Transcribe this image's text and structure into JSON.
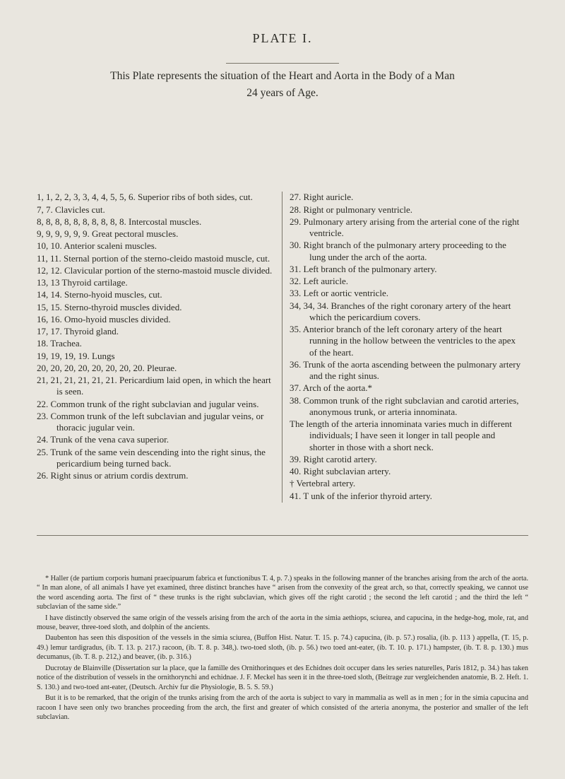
{
  "plateLabel": "PLATE I.",
  "headline": "This Plate represents the situation of the Heart and Aorta in the Body of a Man",
  "subhead": "24 years of Age.",
  "leftEntries": [
    "1, 1, 2, 2, 3, 3, 4, 4, 5, 5, 6. Superior ribs of both sides, cut.",
    "7, 7. Clavicles cut.",
    "8, 8, 8, 8, 8, 8, 8, 8, 8, 8. Intercostal muscles.",
    "9, 9, 9, 9, 9, 9. Great pectoral muscles.",
    "10, 10. Anterior scaleni muscles.",
    "11, 11. Sternal portion of the sterno-cleido mastoid muscle, cut.",
    "12, 12. Clavicular portion of the sterno-mastoid muscle divided.",
    "13, 13  Thyroid cartilage.",
    "14, 14. Sterno-hyoid muscles, cut.",
    "15, 15. Sterno-thyroid muscles divided.",
    "16, 16. Omo-hyoid muscles divided.",
    "17, 17. Thyroid gland.",
    "18. Trachea.",
    "19, 19, 19, 19. Lungs",
    "20, 20, 20, 20, 20, 20, 20, 20. Pleurae.",
    "21, 21, 21, 21, 21, 21. Pericardium laid open, in which the heart is seen.",
    "22. Common trunk of the right subclavian and jugular veins.",
    "23. Common trunk of the left subclavian and jugular veins, or thoracic jugular vein.",
    "24. Trunk of the vena cava superior.",
    "25. Trunk of the same vein descending into the right sinus, the pericardium being turned back.",
    "26. Right sinus or atrium cordis dextrum."
  ],
  "rightEntries": [
    "27. Right auricle.",
    "28. Right or pulmonary ventricle.",
    "29. Pulmonary artery arising from the arterial cone of the right ventricle.",
    "30. Right branch of the pulmonary artery proceeding to the lung under the arch of the aorta.",
    "31. Left branch of the pulmonary artery.",
    "32. Left auricle.",
    "33. Left or aortic ventricle.",
    "34, 34, 34. Branches of the right coronary artery of the heart which the pericardium covers.",
    "35. Anterior branch of the left coronary artery of the heart running in the hollow between the ventricles to the apex of the heart.",
    "36. Trunk of the aorta ascending between the pulmonary artery and the right sinus.",
    "37. Arch of the aorta.*",
    "38. Common trunk of the right subclavian and carotid arteries, anonymous trunk, or arteria innominata.",
    "     The length of the arteria innominata varies much in different individuals; I have seen it longer in tall people and shorter in those with a short neck.",
    "39. Right carotid artery.",
    "40. Right subclavian artery.",
    "†  Vertebral artery.",
    "41. T unk of the inferior thyroid artery."
  ],
  "footnoteParas": [
    "* Haller (de partium corporis humani praecipuarum fabrica et functionibus T. 4, p. 7.) speaks in the following manner of the branches arising from the arch of the aorta. “ In man alone, of all animals I have yet examined, three distinct branches have “ arisen from the convexity of the great arch, so that, correctly speaking, we cannot use the word ascending aorta. The first of “ these trunks is the right subclavian, which gives off the right carotid ; the second the left carotid ; and the third the left “ subclavian of the same side.”",
    "I have distinctly observed the same origin of the vessels arising from the arch of the aorta in the simia aethiops, sciurea, and capucina, in the hedge-hog, mole, rat, and mouse, beaver, three-toed sloth, and dolphin of the ancients.",
    "Daubenton has seen this disposition of the vessels in the simia sciurea, (Buffon Hist. Natur. T. 15. p. 74.) capucina, (ib. p. 57.) rosalia, (ib. p. 113 ) appella, (T. 15, p. 49.) lemur tardigradus, (ib. T. 13. p. 217.) racoon, (ib. T. 8. p. 348,). two-toed sloth, (ib. p. 56.) two toed ant-eater, (ib. T. 10. p. 171.) hampster, (ib. T. 8. p. 130.) mus decumanus, (ib. T. 8. p. 212,) and beaver, (ib. p. 316.)",
    "Ducrotay de Blainville (Dissertation sur la place, que la famille des Ornithorinques et des Echidnes doit occuper dans les series naturelles, Paris 1812, p. 34.) has taken notice of the distribution of vessels in the ornithorynchi and echidnae. J. F. Meckel has seen it in the three-toed sloth, (Beitrage zur vergleichenden anatomie, B. 2. Heft. 1. S. 130.) and two-toed ant-eater, (Deutsch. Archiv fur die Physiologie, B. 5. S. 59.)",
    "But it is to be remarked, that the origin of the trunks arising from the arch of the aorta is subject to vary in mammalia as well as in men ; for in the simia capucina and racoon I have seen only two branches proceeding from the arch, the first and greater of which consisted of the arteria anonyma, the posterior and smaller of the left subclavian."
  ]
}
